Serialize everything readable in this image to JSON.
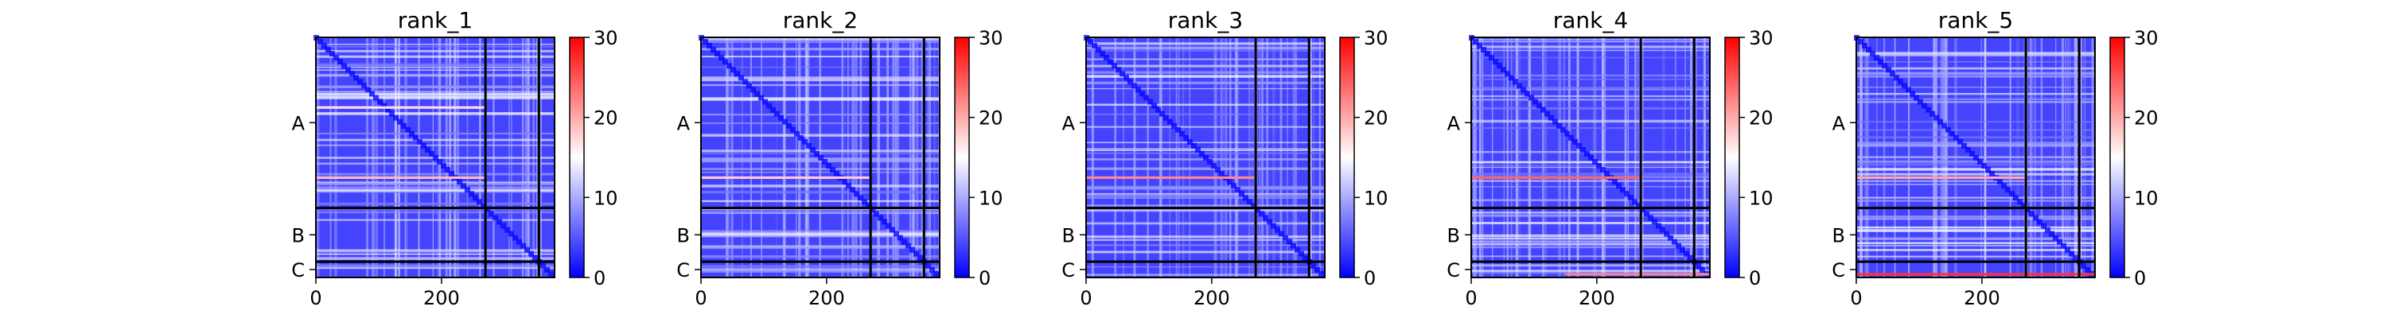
{
  "figure": {
    "background": "#ffffff"
  },
  "colorbar": {
    "ticks": [
      "0",
      "10",
      "20",
      "30"
    ],
    "range": [
      0,
      30
    ],
    "cmap": [
      "#0000ff",
      "#ffffff",
      "#ff0000"
    ]
  },
  "chart_data": [
    {
      "type": "heatmap",
      "title": "rank_1",
      "x_ticks": [
        0,
        200
      ],
      "y_ticks": [
        "A",
        "B",
        "C"
      ],
      "chain_boundaries": [
        270,
        355
      ],
      "matrix_size": 380,
      "value_range": [
        0,
        30
      ],
      "hot_bands": [
        {
          "row": 111,
          "max_value": 17,
          "cols": [
            0,
            270
          ]
        },
        {
          "row": 222,
          "max_value": 19,
          "cols": [
            0,
            270
          ]
        }
      ]
    },
    {
      "type": "heatmap",
      "title": "rank_2",
      "x_ticks": [
        0,
        200
      ],
      "y_ticks": [
        "A",
        "B",
        "C"
      ],
      "chain_boundaries": [
        270,
        355
      ],
      "matrix_size": 380,
      "value_range": [
        0,
        30
      ],
      "hot_bands": [
        {
          "row": 222,
          "max_value": 18,
          "cols": [
            0,
            270
          ]
        }
      ]
    },
    {
      "type": "heatmap",
      "title": "rank_3",
      "x_ticks": [
        0,
        200
      ],
      "y_ticks": [
        "A",
        "B",
        "C"
      ],
      "chain_boundaries": [
        270,
        355
      ],
      "matrix_size": 380,
      "value_range": [
        0,
        30
      ],
      "hot_bands": [
        {
          "row": 222,
          "max_value": 22,
          "cols": [
            0,
            270
          ]
        }
      ]
    },
    {
      "type": "heatmap",
      "title": "rank_4",
      "x_ticks": [
        0,
        200
      ],
      "y_ticks": [
        "A",
        "B",
        "C"
      ],
      "chain_boundaries": [
        270,
        355
      ],
      "matrix_size": 380,
      "value_range": [
        0,
        30
      ],
      "hot_bands": [
        {
          "row": 222,
          "max_value": 24,
          "cols": [
            0,
            270
          ]
        },
        {
          "row": 375,
          "max_value": 22,
          "cols": [
            150,
            380
          ]
        }
      ]
    },
    {
      "type": "heatmap",
      "title": "rank_5",
      "x_ticks": [
        0,
        200
      ],
      "y_ticks": [
        "A",
        "B",
        "C"
      ],
      "chain_boundaries": [
        270,
        355
      ],
      "matrix_size": 380,
      "value_range": [
        0,
        30
      ],
      "hot_bands": [
        {
          "row": 222,
          "max_value": 20,
          "cols": [
            0,
            270
          ]
        },
        {
          "row": 375,
          "max_value": 27,
          "cols": [
            0,
            380
          ]
        }
      ]
    }
  ]
}
